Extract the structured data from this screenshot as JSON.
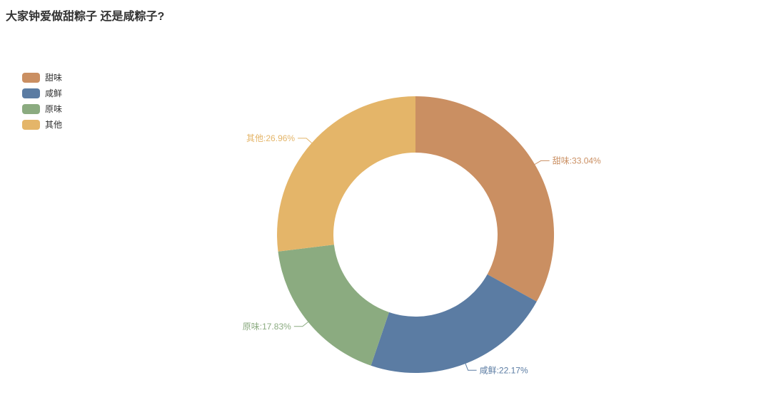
{
  "title": {
    "text": "大家钟爱做甜粽子 还是咸粽子?"
  },
  "legend": {
    "position": "top-left",
    "items": [
      {
        "label": "甜味",
        "color": "#CA8F62"
      },
      {
        "label": "咸鲜",
        "color": "#5B7CA3"
      },
      {
        "label": "原味",
        "color": "#8BAB80"
      },
      {
        "label": "其他",
        "color": "#E4B569"
      }
    ]
  },
  "chart_data": {
    "type": "pie",
    "subtype": "donut",
    "title": "大家钟爱做甜粽子 还是咸粽子?",
    "categories": [
      "甜味",
      "咸鲜",
      "原味",
      "其他"
    ],
    "values": [
      33.04,
      22.17,
      17.83,
      26.96
    ],
    "unit": "%",
    "colors": [
      "#CA8F62",
      "#5B7CA3",
      "#8BAB80",
      "#E4B569"
    ],
    "labels": [
      "甜味:33.04%",
      "咸鲜:22.17%",
      "原味:17.83%",
      "其他:26.96%"
    ],
    "start_position": "top",
    "direction": "clockwise",
    "legend_position": "top-left",
    "background": "#ffffff"
  }
}
